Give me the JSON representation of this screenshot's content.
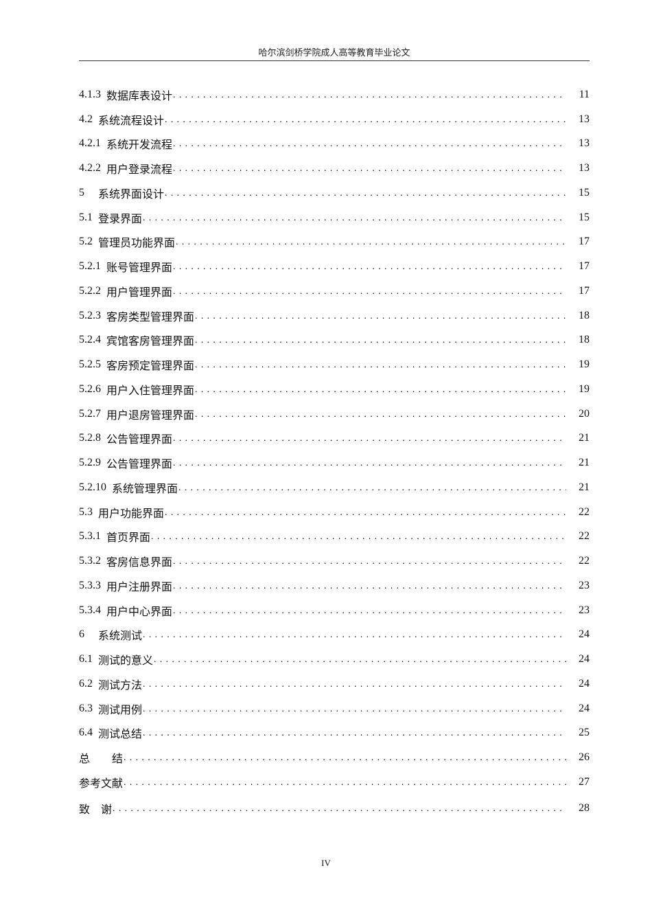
{
  "header": {
    "title": "哈尔滨剑桥学院成人高等教育毕业论文"
  },
  "toc": [
    {
      "num": "4.1.3",
      "title": "数据库表设计",
      "page": "11"
    },
    {
      "num": "4.2",
      "title": "系统流程设计",
      "page": "13"
    },
    {
      "num": "4.2.1",
      "title": "系统开发流程",
      "page": "13"
    },
    {
      "num": "4.2.2",
      "title": "用户登录流程",
      "page": "13"
    },
    {
      "num": "5",
      "title": "系统界面设计",
      "page": "15"
    },
    {
      "num": "5.1",
      "title": "登录界面",
      "page": "15"
    },
    {
      "num": "5.2",
      "title": "管理员功能界面",
      "page": "17"
    },
    {
      "num": "5.2.1",
      "title": "账号管理界面",
      "page": "17"
    },
    {
      "num": "5.2.2",
      "title": "用户管理界面",
      "page": "17"
    },
    {
      "num": "5.2.3",
      "title": "客房类型管理界面",
      "page": "18"
    },
    {
      "num": "5.2.4",
      "title": "宾馆客房管理界面",
      "page": "18"
    },
    {
      "num": "5.2.5",
      "title": "客房预定管理界面",
      "page": "19"
    },
    {
      "num": "5.2.6",
      "title": "用户入住管理界面",
      "page": "19"
    },
    {
      "num": "5.2.7",
      "title": "用户退房管理界面",
      "page": "20"
    },
    {
      "num": "5.2.8",
      "title": "公告管理界面",
      "page": "21"
    },
    {
      "num": "5.2.9",
      "title": "公告管理界面",
      "page": "21"
    },
    {
      "num": "5.2.10",
      "title": "系统管理界面",
      "page": "21"
    },
    {
      "num": "5.3",
      "title": "用户功能界面",
      "page": "22"
    },
    {
      "num": "5.3.1",
      "title": "首页界面",
      "page": "22"
    },
    {
      "num": "5.3.2",
      "title": "客房信息界面",
      "page": "22"
    },
    {
      "num": "5.3.3",
      "title": "用户注册界面",
      "page": "23"
    },
    {
      "num": "5.3.4",
      "title": "用户中心界面",
      "page": "23"
    },
    {
      "num": "6",
      "title": "系统测试",
      "page": "24"
    },
    {
      "num": "6.1",
      "title": "测试的意义",
      "page": "24"
    },
    {
      "num": "6.2",
      "title": "测试方法",
      "page": "24"
    },
    {
      "num": "6.3",
      "title": "测试用例",
      "page": "24"
    },
    {
      "num": "6.4",
      "title": "测试总结",
      "page": "25"
    },
    {
      "num": "",
      "title": "总　　结",
      "page": "26"
    },
    {
      "num": "",
      "title": "参考文献",
      "page": "27"
    },
    {
      "num": "",
      "title": "致　谢",
      "page": "28"
    }
  ],
  "footer": {
    "page_number": "IV"
  }
}
